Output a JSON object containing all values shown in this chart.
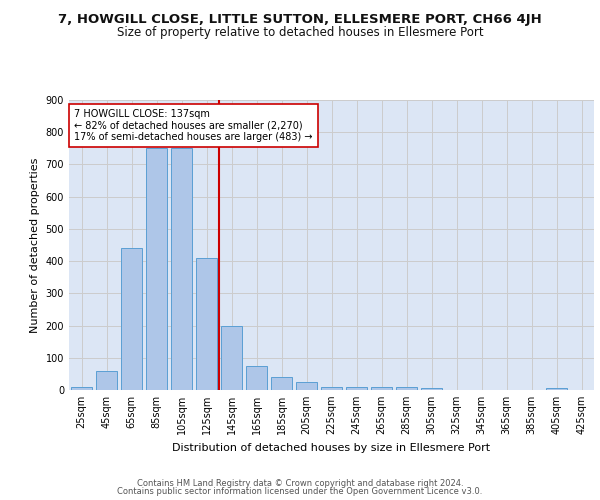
{
  "title1": "7, HOWGILL CLOSE, LITTLE SUTTON, ELLESMERE PORT, CH66 4JH",
  "title2": "Size of property relative to detached houses in Ellesmere Port",
  "xlabel": "Distribution of detached houses by size in Ellesmere Port",
  "ylabel": "Number of detached properties",
  "footer1": "Contains HM Land Registry data © Crown copyright and database right 2024.",
  "footer2": "Contains public sector information licensed under the Open Government Licence v3.0.",
  "annotation_line1": "7 HOWGILL CLOSE: 137sqm",
  "annotation_line2": "← 82% of detached houses are smaller (2,270)",
  "annotation_line3": "17% of semi-detached houses are larger (483) →",
  "bar_categories": [
    "25sqm",
    "45sqm",
    "65sqm",
    "85sqm",
    "105sqm",
    "125sqm",
    "145sqm",
    "165sqm",
    "185sqm",
    "205sqm",
    "225sqm",
    "245sqm",
    "265sqm",
    "285sqm",
    "305sqm",
    "325sqm",
    "345sqm",
    "365sqm",
    "385sqm",
    "405sqm",
    "425sqm"
  ],
  "bar_values": [
    10,
    60,
    440,
    750,
    750,
    410,
    200,
    75,
    40,
    25,
    10,
    10,
    10,
    10,
    5,
    0,
    0,
    0,
    0,
    5,
    0
  ],
  "bar_color": "#aec6e8",
  "bar_edge_color": "#5a9fd4",
  "vline_color": "#cc0000",
  "vline_x": 5.5,
  "ylim": [
    0,
    900
  ],
  "yticks": [
    0,
    100,
    200,
    300,
    400,
    500,
    600,
    700,
    800,
    900
  ],
  "grid_color": "#cccccc",
  "bg_color": "#dce6f5",
  "annotation_box_color": "#ffffff",
  "annotation_box_edge": "#cc0000",
  "title1_fontsize": 9.5,
  "title2_fontsize": 8.5,
  "xlabel_fontsize": 8,
  "ylabel_fontsize": 8,
  "footer_fontsize": 6,
  "tick_fontsize": 7,
  "annotation_fontsize": 7
}
